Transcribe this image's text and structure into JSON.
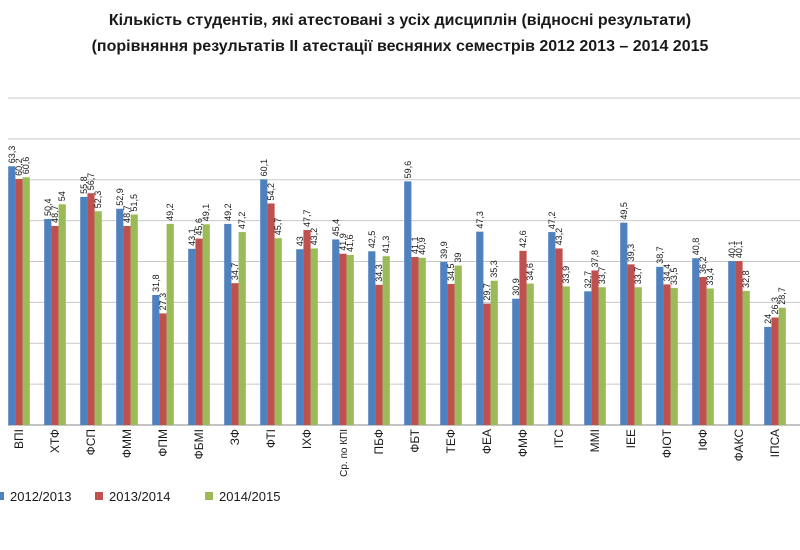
{
  "chart_data": {
    "type": "bar",
    "title": "Кількість студентів, які атестовані з усіх дисциплін (відносні результати)",
    "subtitle": "(порівняння результатів ІІ атестації весняних семестрів 2012 2013 – 2014 2015",
    "categories": [
      "ВПІ",
      "ХТФ",
      "ФСП",
      "ФММ",
      "ФПМ",
      "ФБМІ",
      "ЗФ",
      "ФТІ",
      "ІХФ",
      "Ср. по КПІ",
      "ПБФ",
      "ФБТ",
      "ТЕФ",
      "ФЕА",
      "ФМФ",
      "ІТС",
      "ММІ",
      "ІЕЕ",
      "ФІОТ",
      "ІФФ",
      "ФАКС",
      "ІПСА"
    ],
    "series": [
      {
        "name": "2012/2013",
        "color": "#4f81bd",
        "values": [
          63.3,
          50.4,
          55.8,
          52.9,
          31.8,
          43.1,
          49.2,
          60.1,
          43.0,
          45.4,
          42.5,
          59.6,
          39.9,
          47.3,
          30.9,
          47.2,
          32.7,
          49.5,
          38.7,
          40.8,
          40.1,
          24.0
        ]
      },
      {
        "name": "2013/2014",
        "color": "#c0504d",
        "values": [
          60.2,
          48.7,
          56.7,
          48.7,
          27.3,
          45.6,
          34.7,
          54.2,
          47.7,
          41.9,
          34.3,
          41.1,
          34.5,
          29.7,
          42.6,
          43.2,
          37.8,
          39.3,
          34.4,
          36.2,
          40.1,
          26.3
        ]
      },
      {
        "name": "2014/2015",
        "color": "#9bbb59",
        "values": [
          60.6,
          54.0,
          52.3,
          51.5,
          49.2,
          49.1,
          47.2,
          45.7,
          43.2,
          41.6,
          41.3,
          40.9,
          39.0,
          35.3,
          34.6,
          33.9,
          33.7,
          33.7,
          33.5,
          33.4,
          32.8,
          28.7
        ]
      }
    ],
    "legend_position": "bottom",
    "grid": true
  }
}
